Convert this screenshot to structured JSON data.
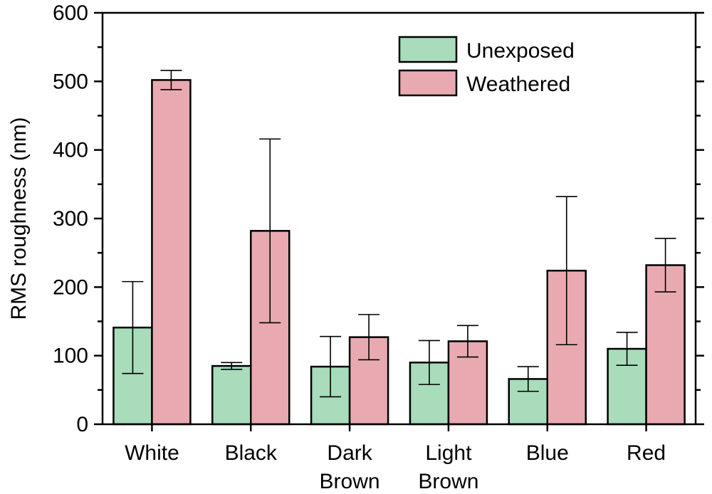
{
  "chart_data": {
    "type": "bar",
    "ylabel": "RMS roughness (nm)",
    "ylim": [
      0,
      600
    ],
    "yticks": [
      0,
      100,
      200,
      300,
      400,
      500,
      600
    ],
    "categories": [
      {
        "lines": [
          "White"
        ]
      },
      {
        "lines": [
          "Black"
        ]
      },
      {
        "lines": [
          "Dark",
          "Brown"
        ]
      },
      {
        "lines": [
          "Light",
          "Brown"
        ]
      },
      {
        "lines": [
          "Blue"
        ]
      },
      {
        "lines": [
          "Red"
        ]
      }
    ],
    "series": [
      {
        "name": "Unexposed",
        "color": "#a8dcbb",
        "values": [
          141,
          85,
          84,
          90,
          66,
          110
        ],
        "errors": [
          67,
          5,
          44,
          32,
          18,
          24
        ]
      },
      {
        "name": "Weathered",
        "color": "#e8aab0",
        "values": [
          502,
          282,
          127,
          121,
          224,
          232
        ],
        "errors": [
          14,
          134,
          33,
          23,
          108,
          39
        ]
      }
    ],
    "legend": {
      "position": "top-right"
    },
    "grid": false
  }
}
